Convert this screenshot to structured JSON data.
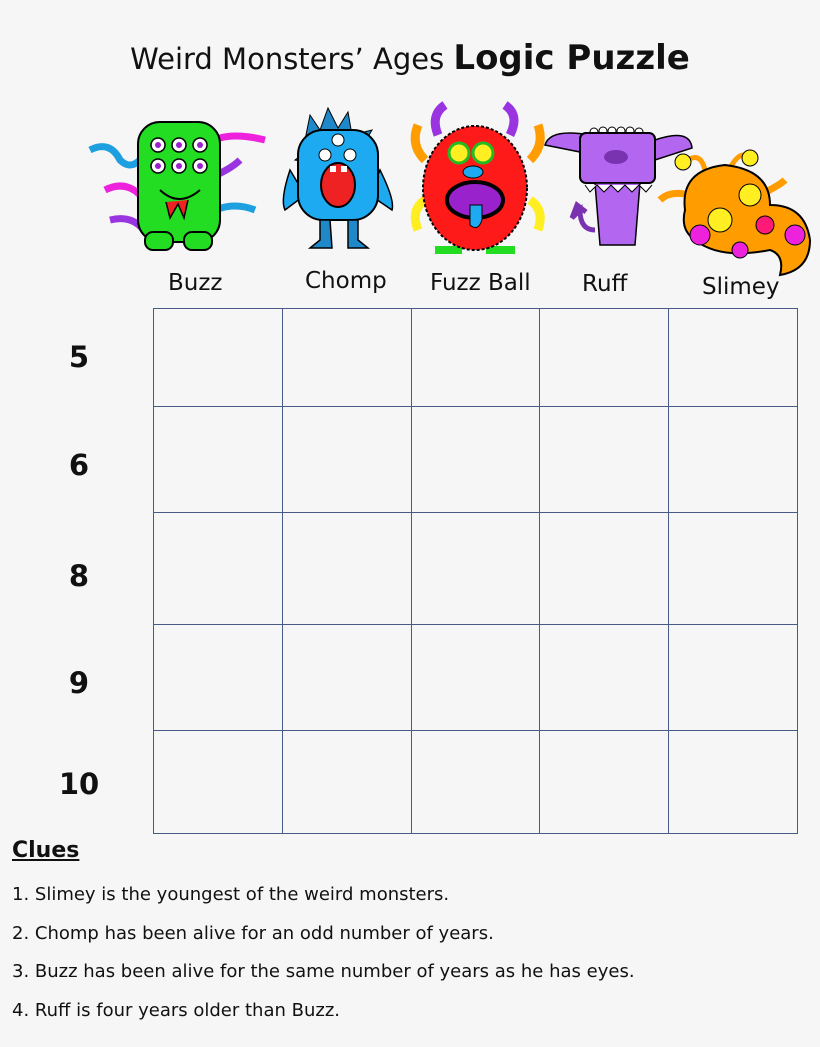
{
  "title": {
    "prefix": "Weird Monsters’ Ages ",
    "bold": "Logic Puzzle"
  },
  "monsters": [
    {
      "name": "Buzz",
      "color": "#22dd22"
    },
    {
      "name": "Chomp",
      "color": "#1eaaf0"
    },
    {
      "name": "Fuzz Ball",
      "color": "#ff1a1a"
    },
    {
      "name": "Ruff",
      "color": "#b366f0"
    },
    {
      "name": "Slimey",
      "color": "#ff9d00"
    }
  ],
  "ages": [
    "5",
    "6",
    "8",
    "9",
    "10"
  ],
  "clues": {
    "heading": "Clues",
    "items": [
      "1. Slimey is the youngest of the weird monsters.",
      "2. Chomp has been alive for an odd number of years.",
      "3. Buzz has been alive for the same number of years as he has eyes.",
      "4. Ruff is four years older than Buzz."
    ]
  },
  "grid_line_color": "#4a5a86"
}
